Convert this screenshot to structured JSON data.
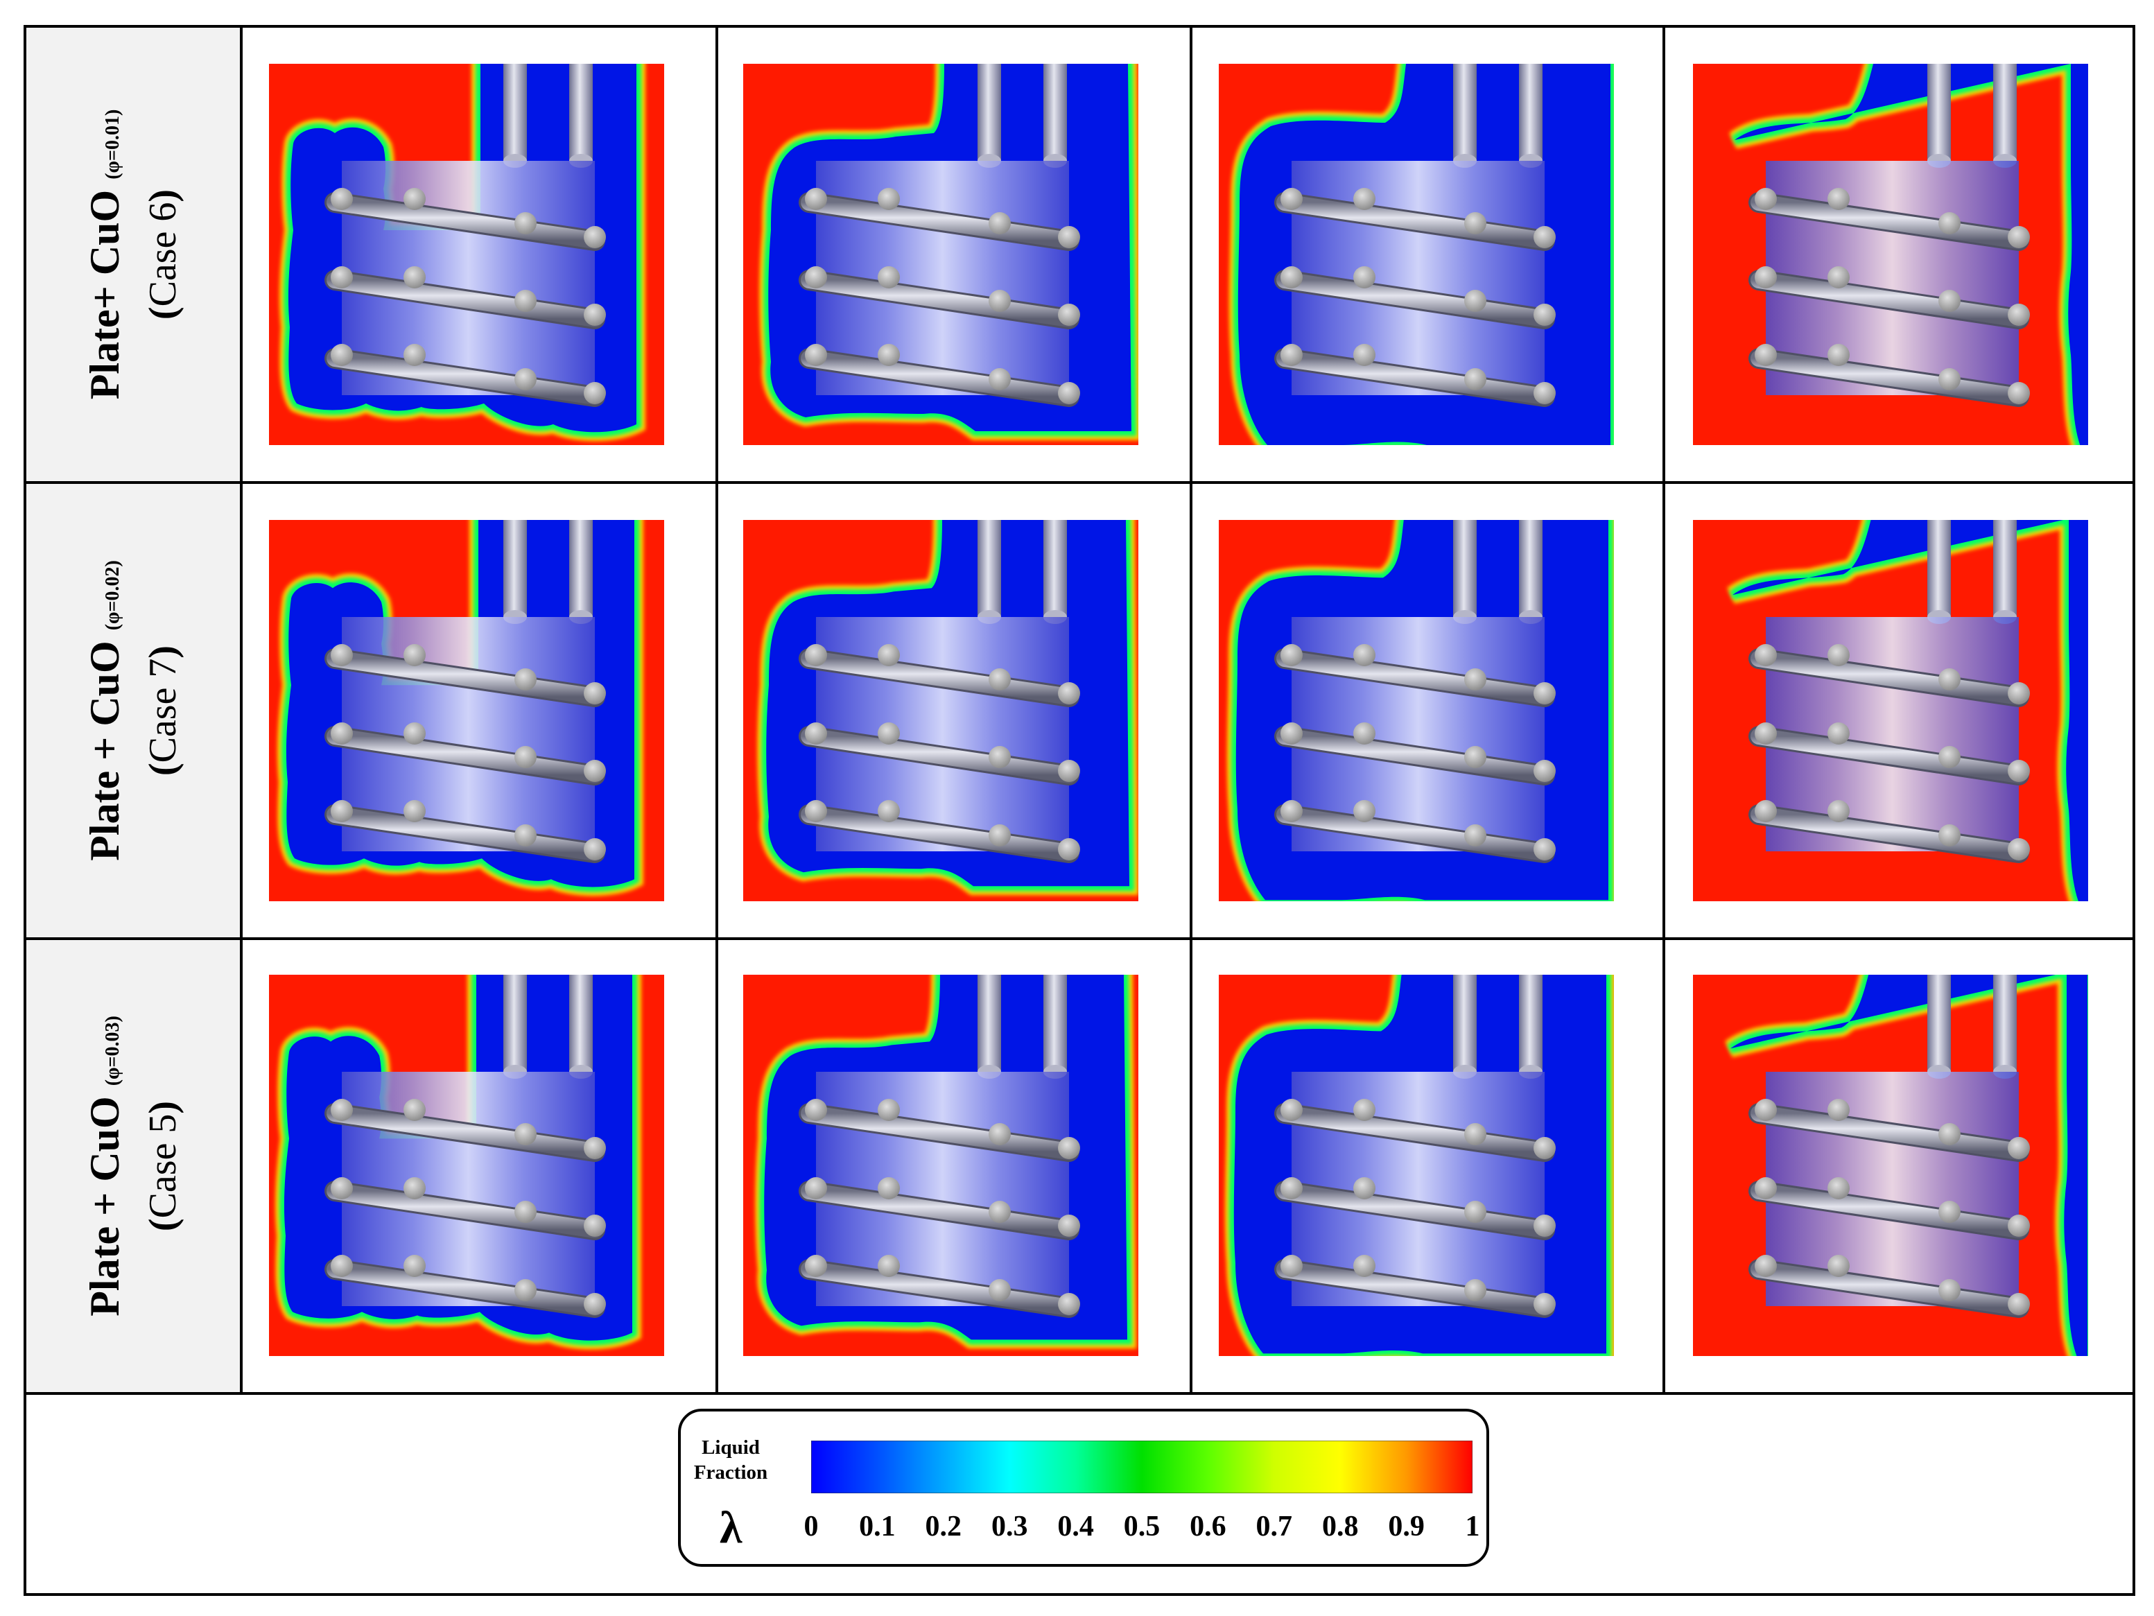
{
  "rows": [
    {
      "label_main": "Plate+ CuO",
      "label_phi": "(φ=0.01)",
      "label_case_open": "(",
      "label_case": "Case 6",
      "label_case_close": ")"
    },
    {
      "label_main": "Plate + CuO",
      "label_phi": "(φ=0.02)",
      "label_case_open": "(",
      "label_case": "Case 7",
      "label_case_close": ")"
    },
    {
      "label_main": "Plate + CuO",
      "label_phi": "(φ=0.03)",
      "label_case_open": "(",
      "label_case": "Case 5",
      "label_case_close": ")"
    }
  ],
  "legend": {
    "title_line1": "Liquid",
    "title_line2": "Fraction",
    "symbol": "λ",
    "ticks": [
      "0",
      "0.1",
      "0.2",
      "0.3",
      "0.4",
      "0.5",
      "0.6",
      "0.7",
      "0.8",
      "0.9",
      "1"
    ],
    "colors": [
      "#0000ff",
      "#0050ff",
      "#00a8ff",
      "#00ffff",
      "#00ff9a",
      "#00e000",
      "#5cff00",
      "#cfff00",
      "#ffff00",
      "#ff9900",
      "#ff0000"
    ]
  },
  "colors": {
    "liquid": "#ff1a00",
    "solid": "#0015e6",
    "interface_mid": "#00ff66",
    "interface_outer": "#ffd000",
    "grid_line": "#000000",
    "label_bg": "#f2f2f2"
  }
}
